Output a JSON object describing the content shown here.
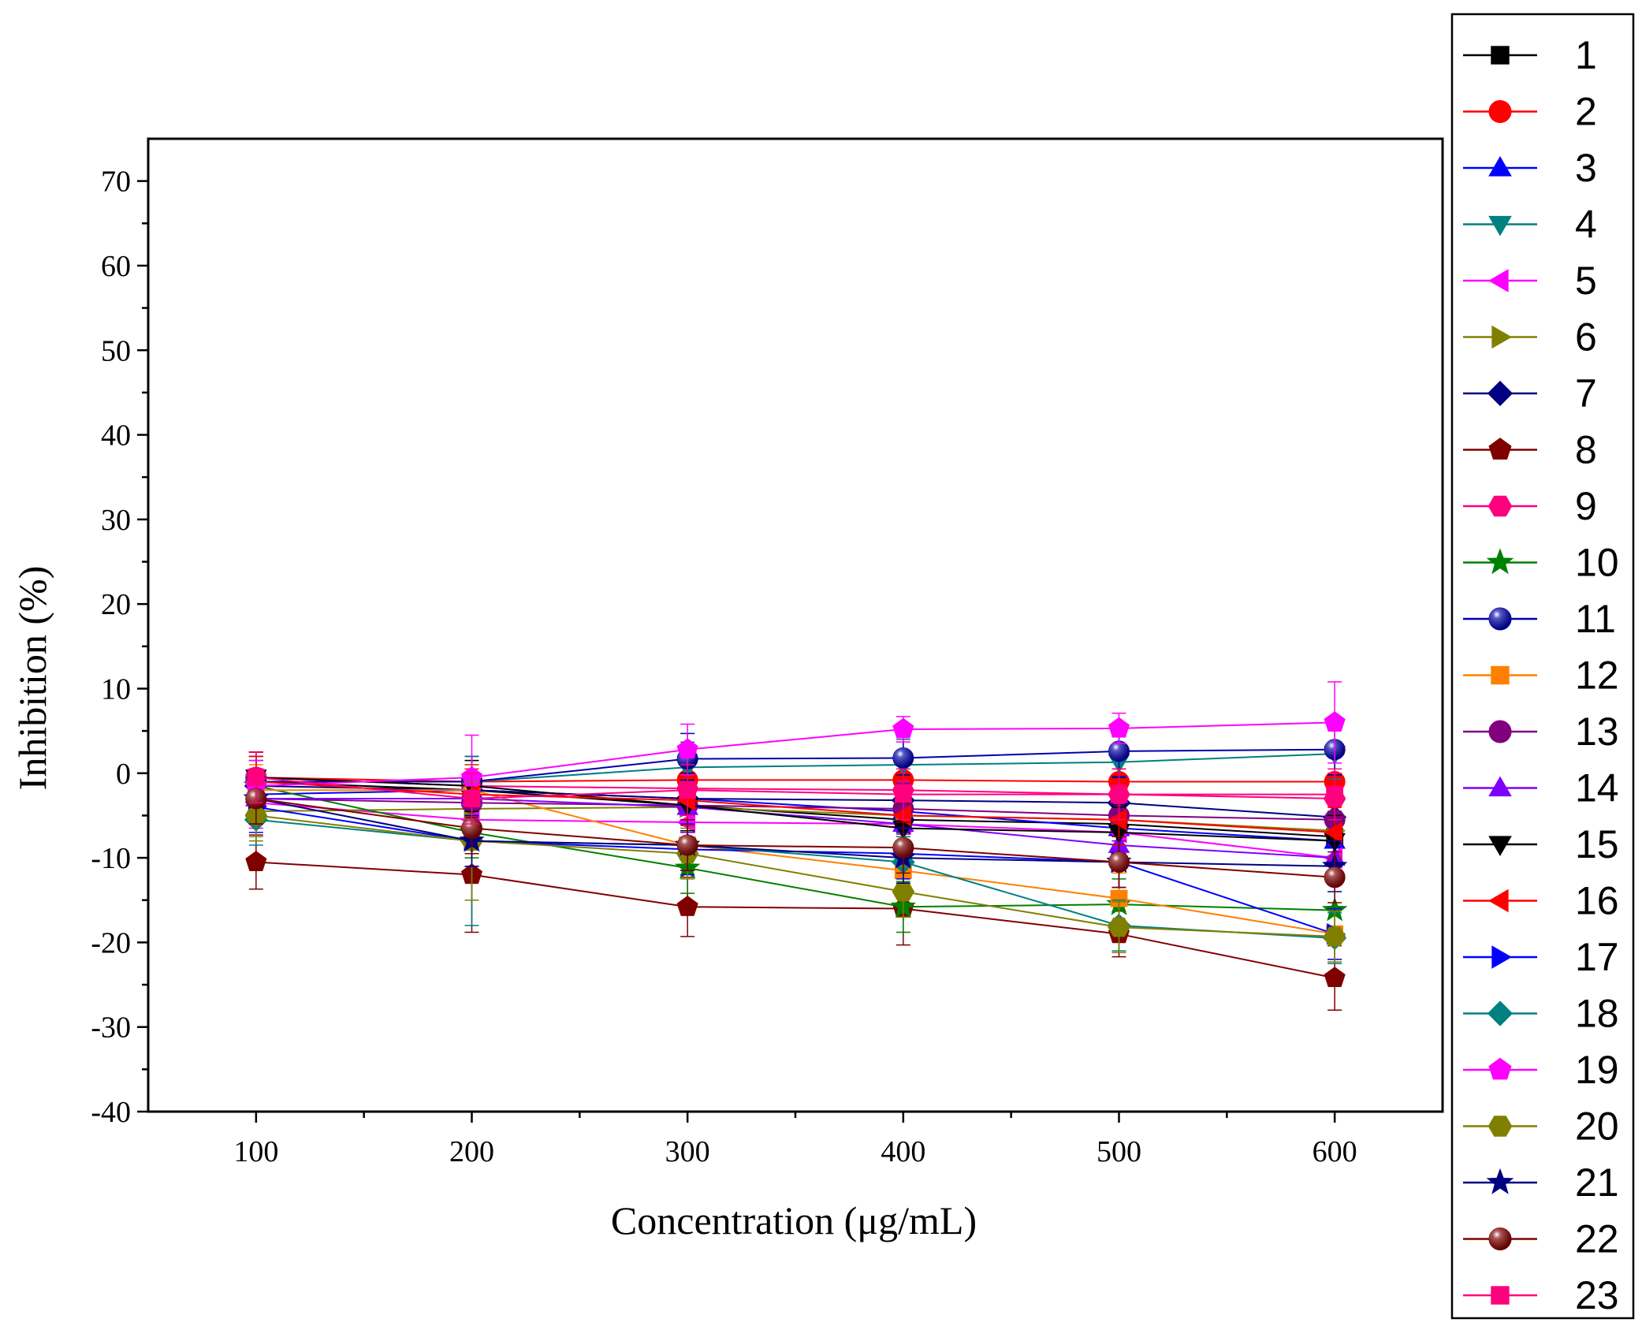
{
  "chart_data": {
    "type": "line",
    "xlabel": "Concentration (μg/mL)",
    "ylabel": "Inhibition (%)",
    "x": [
      100,
      200,
      300,
      400,
      500,
      600
    ],
    "xlim": [
      50,
      650
    ],
    "ylim": [
      -40,
      75
    ],
    "xticks": [
      "100",
      "200",
      "300",
      "400",
      "500",
      "600"
    ],
    "yticks": [
      "-40",
      "-30",
      "-20",
      "-10",
      "0",
      "10",
      "20",
      "30",
      "40",
      "50",
      "60",
      "70"
    ],
    "grid": false,
    "legend_position": "right",
    "series": [
      {
        "name": "1",
        "color": "#000000",
        "marker": "square",
        "values": [
          -1.0,
          -2.0,
          -3.8,
          -5.5,
          -6.0,
          -7.5
        ],
        "err": [
          3,
          3,
          3,
          3,
          3,
          3
        ]
      },
      {
        "name": "2",
        "color": "#ff0000",
        "marker": "circle",
        "values": [
          -0.5,
          -1.0,
          -0.8,
          -0.8,
          -1.0,
          -1.0
        ],
        "err": [
          3,
          3,
          3,
          3,
          3,
          3
        ]
      },
      {
        "name": "3",
        "color": "#0000ff",
        "marker": "triangle-up",
        "values": [
          -2.5,
          -2.0,
          -3.0,
          -4.5,
          -6.5,
          -8.0
        ],
        "err": [
          3,
          3,
          3,
          3,
          3,
          3
        ]
      },
      {
        "name": "4",
        "color": "#008080",
        "marker": "triangle-down",
        "values": [
          -1.0,
          -1.0,
          0.7,
          1.0,
          1.3,
          2.3
        ],
        "err": [
          3,
          3,
          3,
          3,
          3,
          3
        ]
      },
      {
        "name": "5",
        "color": "#ff00ff",
        "marker": "triangle-left",
        "values": [
          -3.5,
          -5.5,
          -5.8,
          -6.0,
          -7.0,
          -10.0
        ],
        "err": [
          3,
          3,
          3,
          3,
          3,
          3
        ]
      },
      {
        "name": "6",
        "color": "#808000",
        "marker": "triangle-right",
        "values": [
          -4.5,
          -4.2,
          -4.0,
          -5.0,
          -5.5,
          -6.8
        ],
        "err": [
          3,
          3,
          3,
          3,
          3,
          3
        ]
      },
      {
        "name": "7",
        "color": "#000080",
        "marker": "diamond",
        "values": [
          -1.5,
          -2.0,
          -3.0,
          -3.2,
          -3.5,
          -5.2
        ],
        "err": [
          3,
          3,
          3,
          3,
          3,
          3
        ]
      },
      {
        "name": "8",
        "color": "#800000",
        "marker": "pentagon",
        "values": [
          -10.5,
          -12.0,
          -15.8,
          -16.0,
          -19.0,
          -24.2
        ],
        "err": [
          3.2,
          6.8,
          3.5,
          4.3,
          2.7,
          3.8
        ]
      },
      {
        "name": "9",
        "color": "#ff007f",
        "marker": "hexagon",
        "values": [
          -0.5,
          -1.5,
          -1.8,
          -2.0,
          -2.5,
          -3.0
        ],
        "err": [
          3,
          3,
          3,
          3,
          3,
          3
        ]
      },
      {
        "name": "10",
        "color": "#008000",
        "marker": "star",
        "values": [
          -1.5,
          -7.0,
          -11.2,
          -15.8,
          -15.5,
          -16.2
        ],
        "err": [
          3,
          3,
          3,
          3,
          3,
          3
        ]
      },
      {
        "name": "11",
        "color": "#0000aa",
        "marker": "ball",
        "values": [
          -1.0,
          -1.0,
          1.7,
          1.8,
          2.6,
          2.8
        ],
        "err": [
          3,
          3,
          3,
          3,
          3,
          3
        ]
      },
      {
        "name": "12",
        "color": "#ff8000",
        "marker": "square",
        "values": [
          -2.0,
          -2.0,
          -8.5,
          -11.5,
          -14.8,
          -19.0
        ],
        "err": [
          3,
          3,
          3,
          3,
          3,
          3
        ]
      },
      {
        "name": "13",
        "color": "#800080",
        "marker": "circle",
        "values": [
          -3.0,
          -3.5,
          -3.8,
          -4.2,
          -5.0,
          -5.5
        ],
        "err": [
          3,
          3,
          3,
          3,
          3,
          3
        ]
      },
      {
        "name": "14",
        "color": "#8000ff",
        "marker": "triangle-up",
        "values": [
          -3.0,
          -3.0,
          -4.0,
          -6.0,
          -8.5,
          -10.0
        ],
        "err": [
          3,
          3,
          3,
          3,
          3,
          3
        ]
      },
      {
        "name": "15",
        "color": "#000000",
        "marker": "triangle-down",
        "values": [
          -0.5,
          -1.5,
          -3.8,
          -6.5,
          -7.0,
          -8.0
        ],
        "err": [
          3,
          3,
          3,
          3,
          3,
          3
        ]
      },
      {
        "name": "16",
        "color": "#ff0000",
        "marker": "triangle-left",
        "values": [
          -1.0,
          -2.5,
          -3.2,
          -5.0,
          -5.5,
          -7.0
        ],
        "err": [
          3,
          3,
          3,
          3,
          3,
          3
        ]
      },
      {
        "name": "17",
        "color": "#0000ff",
        "marker": "triangle-right",
        "values": [
          -4.0,
          -8.0,
          -9.0,
          -9.5,
          -10.5,
          -19.0
        ],
        "err": [
          3,
          3,
          3,
          3,
          3,
          3
        ]
      },
      {
        "name": "18",
        "color": "#008080",
        "marker": "diamond",
        "values": [
          -5.5,
          -8.0,
          -8.5,
          -10.5,
          -18.0,
          -19.5
        ],
        "err": [
          3,
          10,
          3,
          3,
          3,
          3
        ]
      },
      {
        "name": "19",
        "color": "#ff00ff",
        "marker": "pentagon",
        "values": [
          -1.5,
          -0.5,
          2.8,
          5.2,
          5.3,
          6.0
        ],
        "err": [
          3,
          5,
          3,
          1.5,
          1.8,
          4.8
        ]
      },
      {
        "name": "20",
        "color": "#808000",
        "marker": "hexagon",
        "values": [
          -5.0,
          -8.0,
          -9.5,
          -14.0,
          -18.2,
          -19.3
        ],
        "err": [
          3,
          7,
          3,
          3,
          3,
          3
        ]
      },
      {
        "name": "21",
        "color": "#000080",
        "marker": "star",
        "values": [
          -3.0,
          -8.0,
          -8.5,
          -10.0,
          -10.5,
          -11.0
        ],
        "err": [
          3,
          3,
          3,
          3,
          3,
          3
        ]
      },
      {
        "name": "22",
        "color": "#800000",
        "marker": "ball",
        "values": [
          -3.0,
          -6.5,
          -8.5,
          -8.8,
          -10.5,
          -12.3
        ],
        "err": [
          3,
          3,
          3,
          3,
          3,
          3
        ]
      },
      {
        "name": "23",
        "color": "#ff007f",
        "marker": "square",
        "values": [
          -0.5,
          -3.0,
          -2.0,
          -2.5,
          -2.5,
          -2.5
        ],
        "err": [
          3,
          3,
          3,
          3,
          3,
          3
        ]
      }
    ]
  }
}
